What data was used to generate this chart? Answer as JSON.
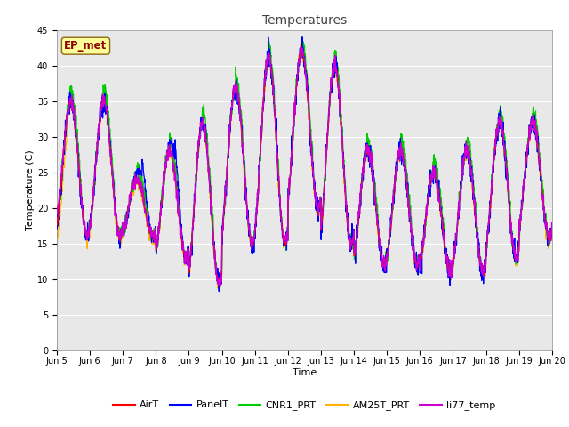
{
  "title": "Temperatures",
  "xlabel": "Time",
  "ylabel": "Temperature (C)",
  "ylim": [
    0,
    45
  ],
  "yticks": [
    0,
    5,
    10,
    15,
    20,
    25,
    30,
    35,
    40,
    45
  ],
  "annotation_text": "EP_met",
  "annotation_color": "#8B0000",
  "annotation_bg": "#FFFF99",
  "annotation_border": "#8B6914",
  "series_colors": {
    "AirT": "#FF0000",
    "PanelT": "#0000FF",
    "CNR1_PRT": "#00CC00",
    "AM25T_PRT": "#FFB300",
    "li77_temp": "#CC00CC"
  },
  "x_labels": [
    "Jun 5",
    "Jun 6",
    "Jun 7",
    "Jun 8",
    "Jun 9",
    "Jun 10",
    "Jun 11",
    "Jun 12",
    "Jun 13",
    "Jun 14",
    "Jun 15",
    "Jun 16",
    "Jun 17",
    "Jun 18",
    "Jun 19",
    "Jun 20"
  ],
  "fig_bg": "#FFFFFF",
  "plot_bg": "#E8E8E8",
  "grid_color": "#FFFFFF",
  "linewidth": 0.9,
  "title_fontsize": 10,
  "axis_fontsize": 8,
  "tick_fontsize": 7,
  "legend_fontsize": 8
}
